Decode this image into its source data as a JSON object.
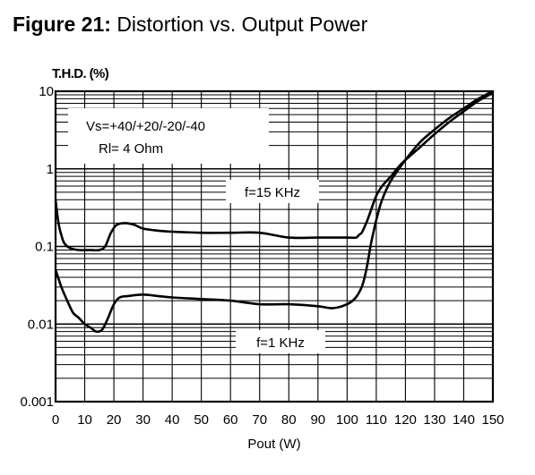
{
  "figure": {
    "number": "Figure 21:",
    "caption": "Distortion vs.  Output Power"
  },
  "chart_data": {
    "type": "line",
    "ylabel": "T.H.D.  (%)",
    "xlabel": "Pout  (W)",
    "xlim": [
      0,
      150
    ],
    "ylim": [
      0.001,
      10
    ],
    "yscale": "log",
    "grid": true,
    "x_ticks": [
      0,
      10,
      20,
      30,
      40,
      50,
      60,
      70,
      80,
      90,
      100,
      110,
      120,
      130,
      140,
      150
    ],
    "y_ticks": [
      {
        "value": 10,
        "label": "10"
      },
      {
        "value": 1,
        "label": "1"
      },
      {
        "value": 0.1,
        "label": "0.1"
      },
      {
        "value": 0.01,
        "label": "0.01"
      },
      {
        "value": 0.001,
        "label": "0.001"
      }
    ],
    "annotations": [
      {
        "text": "Vs=+40/+20/-20/-40"
      },
      {
        "text": "Rl=  4 Ohm"
      }
    ],
    "series": [
      {
        "name": "f=15 KHz",
        "color": "#000000",
        "x": [
          0,
          1,
          2,
          3,
          5,
          8,
          12,
          15,
          17,
          19,
          21,
          24,
          27,
          30,
          35,
          40,
          50,
          60,
          70,
          80,
          90,
          100,
          103,
          104,
          105,
          106,
          107,
          108,
          110,
          112,
          115,
          118,
          120,
          125,
          130,
          135,
          140,
          145,
          150
        ],
        "y": [
          0.4,
          0.2,
          0.14,
          0.11,
          0.095,
          0.09,
          0.09,
          0.09,
          0.1,
          0.15,
          0.19,
          0.2,
          0.19,
          0.17,
          0.16,
          0.155,
          0.15,
          0.15,
          0.15,
          0.13,
          0.13,
          0.13,
          0.13,
          0.14,
          0.15,
          0.18,
          0.22,
          0.28,
          0.45,
          0.6,
          0.8,
          1.1,
          1.3,
          1.9,
          2.8,
          4.0,
          5.5,
          7.5,
          9.5
        ]
      },
      {
        "name": "f=1 KHz",
        "color": "#000000",
        "x": [
          0,
          2,
          4,
          6,
          8,
          10,
          12,
          14,
          16,
          18,
          20,
          22,
          25,
          30,
          35,
          40,
          50,
          60,
          70,
          80,
          90,
          95,
          100,
          103,
          105,
          106,
          107,
          108,
          109,
          110,
          112,
          115,
          120,
          125,
          130,
          135,
          140,
          145,
          150
        ],
        "y": [
          0.05,
          0.03,
          0.02,
          0.014,
          0.012,
          0.01,
          0.009,
          0.008,
          0.0085,
          0.012,
          0.018,
          0.022,
          0.023,
          0.024,
          0.023,
          0.022,
          0.021,
          0.02,
          0.018,
          0.018,
          0.017,
          0.016,
          0.018,
          0.022,
          0.03,
          0.04,
          0.06,
          0.1,
          0.15,
          0.22,
          0.4,
          0.7,
          1.3,
          2.2,
          3.2,
          4.5,
          6.0,
          8.0,
          10.0
        ]
      }
    ]
  }
}
